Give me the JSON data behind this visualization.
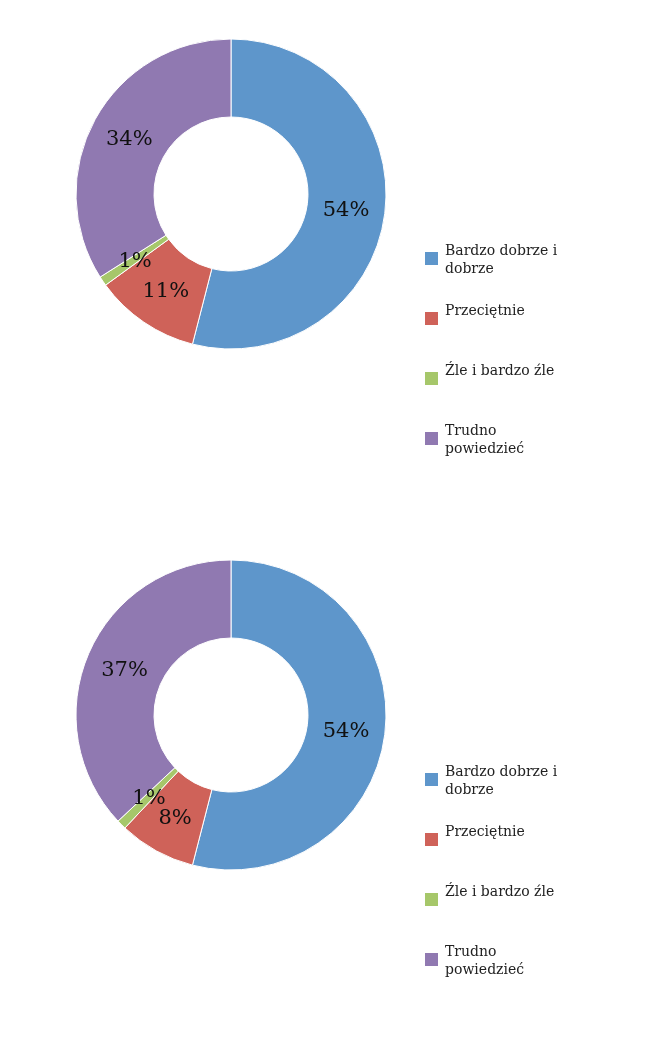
{
  "chart_data": [
    {
      "type": "donut",
      "categories": [
        "Bardzo dobrze i dobrze",
        "Przeciętnie",
        "Źle i bardzo źle",
        "Trudno powiedzieć"
      ],
      "values": [
        54,
        11,
        1,
        34
      ],
      "value_labels": [
        "54%",
        "11%",
        "1%",
        "34%"
      ],
      "colors": [
        "#5e96cb",
        "#cf6259",
        "#a6c76a",
        "#9079b1"
      ],
      "legend": "right"
    },
    {
      "type": "donut",
      "categories": [
        "Bardzo dobrze i dobrze",
        "Przeciętnie",
        "Źle i bardzo źle",
        "Trudno powiedzieć"
      ],
      "values": [
        54,
        8,
        1,
        37
      ],
      "value_labels": [
        "54%",
        "8%",
        "1%",
        "37%"
      ],
      "colors": [
        "#5e96cb",
        "#cf6259",
        "#a6c76a",
        "#9079b1"
      ],
      "legend": "right"
    }
  ]
}
